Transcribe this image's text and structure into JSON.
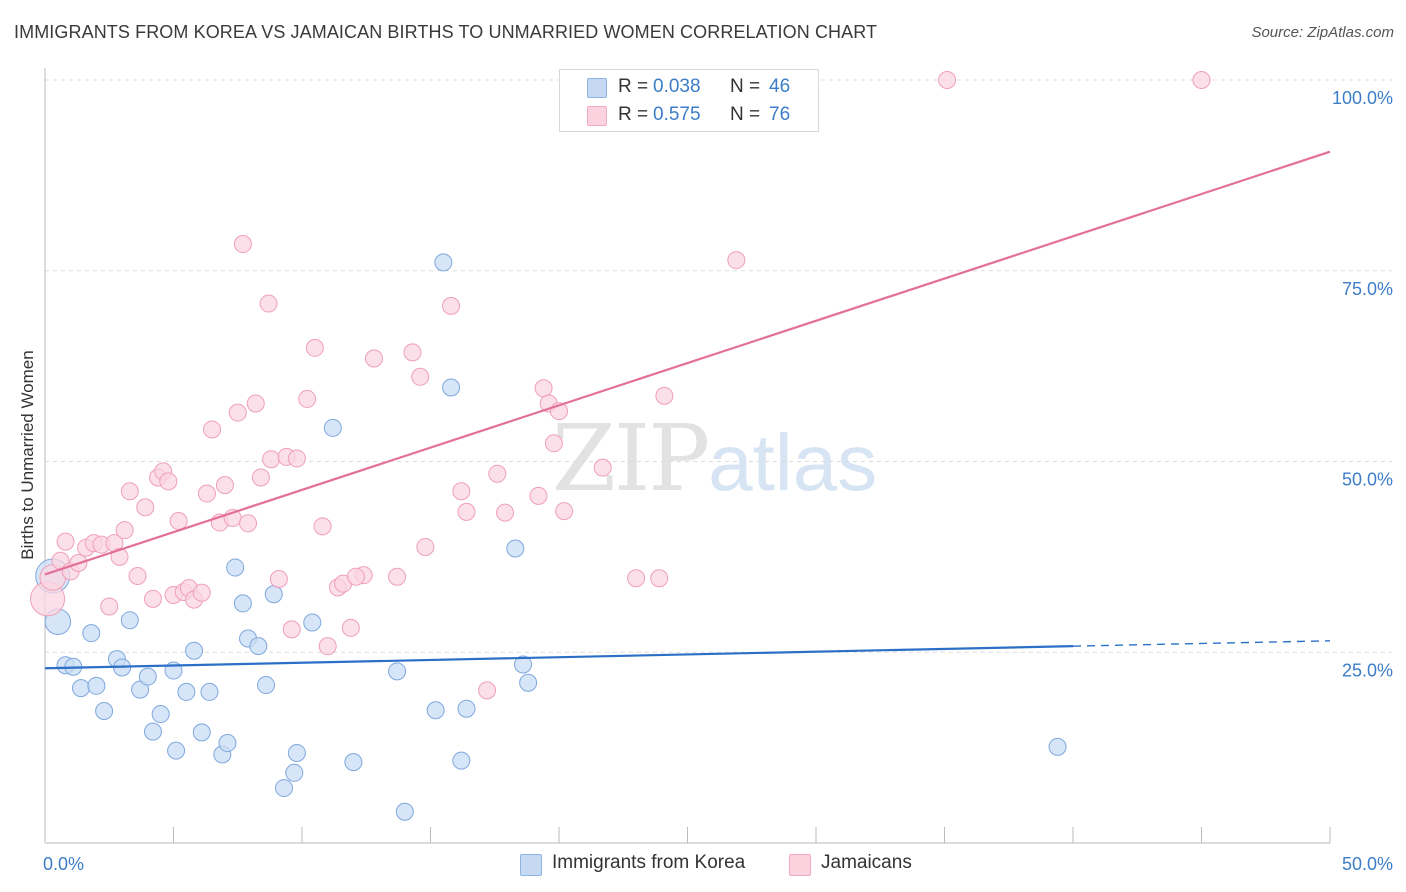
{
  "title": "IMMIGRANTS FROM KOREA VS JAMAICAN BIRTHS TO UNMARRIED WOMEN CORRELATION CHART",
  "source": "Source: ZipAtlas.com",
  "watermark": {
    "zip": "ZIP",
    "atlas": "atlas"
  },
  "legend": {
    "korea": {
      "r_label": "R =",
      "r_value": "0.038",
      "n_label": "N =",
      "n_value": "46"
    },
    "jamaica": {
      "r_label": "R =",
      "r_value": "0.575",
      "n_label": "N =",
      "n_value": "76"
    }
  },
  "colors": {
    "korea": "#6fa0dc",
    "korea_line": "#2b6fc6",
    "jamaica": "#ef8fb0",
    "jamaica_line": "#e3709a",
    "tick": "#3d7dc8"
  },
  "chart_data": {
    "type": "scatter",
    "title": "IMMIGRANTS FROM KOREA VS JAMAICAN BIRTHS TO UNMARRIED WOMEN CORRELATION CHART",
    "xlabel": "",
    "ylabel": "Births to Unmarried Women",
    "xlim": [
      0,
      50
    ],
    "ylim": [
      0,
      100
    ],
    "x_tick_labels": [
      "0.0%",
      "50.0%"
    ],
    "y_ticks": [
      25,
      50,
      75,
      100
    ],
    "y_tick_labels": [
      "25.0%",
      "50.0%",
      "75.0%",
      "100.0%"
    ],
    "grid": true,
    "legend_position": "top-center",
    "series": [
      {
        "name": "Immigrants from Korea",
        "trend": {
          "x0": 0,
          "y0": 22.9,
          "x1": 40,
          "y1": 25.8,
          "x_dash_end": 50,
          "y_dash_end": 26.5
        },
        "points": [
          [
            0.3,
            35.0,
            2
          ],
          [
            0.5,
            29.0,
            1.5
          ],
          [
            0.8,
            23.3,
            1
          ],
          [
            1.1,
            23.1,
            1
          ],
          [
            1.4,
            20.3,
            1
          ],
          [
            1.8,
            27.5,
            1
          ],
          [
            2.0,
            20.6,
            1
          ],
          [
            2.3,
            17.3,
            1
          ],
          [
            2.8,
            24.1,
            1
          ],
          [
            3.0,
            23.0,
            1
          ],
          [
            3.3,
            29.2,
            1
          ],
          [
            3.7,
            20.1,
            1
          ],
          [
            4.0,
            21.8,
            1
          ],
          [
            4.2,
            14.6,
            1
          ],
          [
            4.5,
            16.9,
            1
          ],
          [
            5.0,
            22.6,
            1
          ],
          [
            5.1,
            12.1,
            1
          ],
          [
            5.5,
            19.8,
            1
          ],
          [
            5.8,
            25.2,
            1
          ],
          [
            6.1,
            14.5,
            1
          ],
          [
            6.4,
            19.8,
            1
          ],
          [
            6.9,
            11.6,
            1
          ],
          [
            7.1,
            13.1,
            1
          ],
          [
            7.4,
            36.1,
            1
          ],
          [
            7.7,
            31.4,
            1
          ],
          [
            7.9,
            26.8,
            1
          ],
          [
            8.3,
            25.8,
            1
          ],
          [
            8.6,
            20.7,
            1
          ],
          [
            8.9,
            32.6,
            1
          ],
          [
            9.3,
            7.2,
            1
          ],
          [
            9.7,
            9.2,
            1
          ],
          [
            9.8,
            11.8,
            1
          ],
          [
            10.4,
            28.9,
            1
          ],
          [
            11.2,
            54.4,
            1
          ],
          [
            12.0,
            10.6,
            1
          ],
          [
            13.7,
            22.5,
            1
          ],
          [
            14.0,
            4.1,
            1
          ],
          [
            15.2,
            17.4,
            1
          ],
          [
            15.8,
            59.7,
            1
          ],
          [
            15.5,
            76.1,
            1
          ],
          [
            16.2,
            10.8,
            1
          ],
          [
            16.4,
            17.6,
            1
          ],
          [
            18.3,
            38.6,
            1
          ],
          [
            18.6,
            23.4,
            1
          ],
          [
            18.8,
            21.0,
            1
          ],
          [
            39.4,
            12.6,
            1
          ]
        ]
      },
      {
        "name": "Jamaicans",
        "trend": {
          "x0": 0,
          "y0": 35.2,
          "x1": 50,
          "y1": 90.6
        },
        "points": [
          [
            0.1,
            32.0,
            2
          ],
          [
            0.3,
            34.8,
            1.5
          ],
          [
            0.6,
            37.0,
            1
          ],
          [
            0.8,
            39.5,
            1
          ],
          [
            1.0,
            35.6,
            1
          ],
          [
            1.3,
            36.7,
            1
          ],
          [
            1.6,
            38.7,
            1
          ],
          [
            1.9,
            39.3,
            1
          ],
          [
            2.2,
            39.1,
            1
          ],
          [
            2.5,
            31.0,
            1
          ],
          [
            2.7,
            39.3,
            1
          ],
          [
            2.9,
            37.5,
            1
          ],
          [
            3.1,
            41.0,
            1
          ],
          [
            3.3,
            46.1,
            1
          ],
          [
            3.6,
            35.0,
            1
          ],
          [
            3.9,
            44.0,
            1
          ],
          [
            4.2,
            32.0,
            1
          ],
          [
            4.4,
            47.9,
            1
          ],
          [
            4.6,
            48.7,
            1
          ],
          [
            4.8,
            47.4,
            1
          ],
          [
            5.0,
            32.5,
            1
          ],
          [
            5.2,
            42.2,
            1
          ],
          [
            5.4,
            32.9,
            1
          ],
          [
            5.6,
            33.4,
            1
          ],
          [
            5.8,
            31.9,
            1
          ],
          [
            6.1,
            32.8,
            1
          ],
          [
            6.3,
            45.8,
            1
          ],
          [
            6.5,
            54.2,
            1
          ],
          [
            6.8,
            42.0,
            1
          ],
          [
            7.0,
            46.9,
            1
          ],
          [
            7.3,
            42.6,
            1
          ],
          [
            7.5,
            56.4,
            1
          ],
          [
            7.7,
            78.5,
            1
          ],
          [
            7.9,
            41.9,
            1
          ],
          [
            8.2,
            57.6,
            1
          ],
          [
            8.4,
            47.9,
            1
          ],
          [
            8.7,
            70.7,
            1
          ],
          [
            8.8,
            50.3,
            1
          ],
          [
            9.1,
            34.6,
            1
          ],
          [
            9.4,
            50.6,
            1
          ],
          [
            9.6,
            28.0,
            1
          ],
          [
            9.8,
            50.4,
            1
          ],
          [
            10.2,
            58.2,
            1
          ],
          [
            10.5,
            64.9,
            1
          ],
          [
            10.8,
            41.5,
            1
          ],
          [
            11.0,
            25.8,
            1
          ],
          [
            11.4,
            33.5,
            1
          ],
          [
            11.6,
            34.0,
            1
          ],
          [
            11.9,
            28.2,
            1
          ],
          [
            12.4,
            35.1,
            1
          ],
          [
            12.8,
            63.5,
            1
          ],
          [
            13.7,
            34.9,
            1
          ],
          [
            14.3,
            64.3,
            1
          ],
          [
            14.6,
            61.1,
            1
          ],
          [
            14.8,
            38.8,
            1
          ],
          [
            15.8,
            70.4,
            1
          ],
          [
            16.2,
            46.1,
            1
          ],
          [
            16.4,
            43.4,
            1
          ],
          [
            17.6,
            48.4,
            1
          ],
          [
            17.2,
            20.0,
            1
          ],
          [
            19.2,
            45.5,
            1
          ],
          [
            19.4,
            59.6,
            1
          ],
          [
            19.6,
            57.6,
            1
          ],
          [
            19.8,
            52.4,
            1
          ],
          [
            20.0,
            56.6,
            1
          ],
          [
            20.2,
            43.5,
            1
          ],
          [
            20.6,
            100.0,
            1
          ],
          [
            21.7,
            49.2,
            1
          ],
          [
            23.0,
            34.7,
            1
          ],
          [
            23.9,
            34.7,
            1
          ],
          [
            24.1,
            58.6,
            1
          ],
          [
            26.9,
            76.4,
            1
          ],
          [
            35.1,
            100.0,
            1
          ],
          [
            45.0,
            100.0,
            1
          ],
          [
            17.9,
            43.3,
            1
          ],
          [
            12.1,
            34.9,
            1
          ]
        ]
      }
    ]
  },
  "bottom_legend": {
    "korea": "Immigrants from Korea",
    "jamaica": "Jamaicans"
  }
}
